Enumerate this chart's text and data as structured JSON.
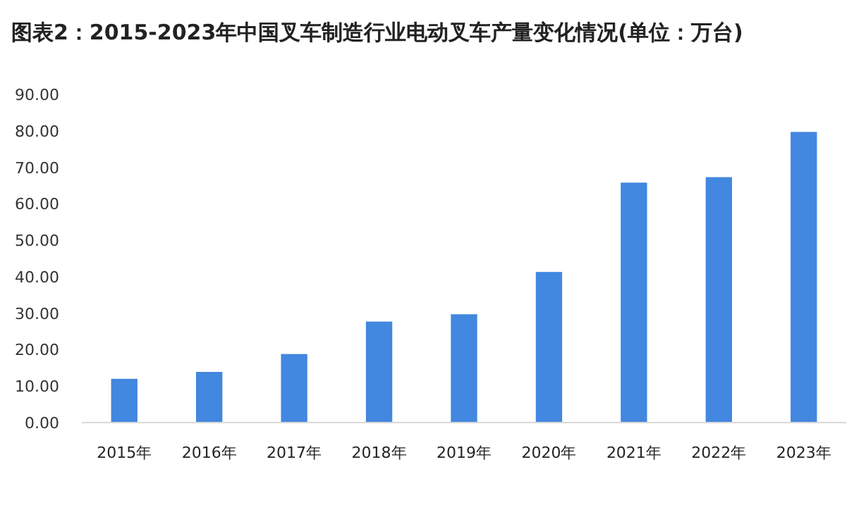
{
  "chart_data": {
    "type": "bar",
    "title": "图表2：2015-2023年中国叉车制造行业电动叉车产量变化情况(单位：万台)",
    "categories": [
      "2015年",
      "2016年",
      "2017年",
      "2018年",
      "2019年",
      "2020年",
      "2021年",
      "2022年",
      "2023年"
    ],
    "values": [
      12.0,
      13.9,
      18.8,
      27.7,
      29.7,
      41.3,
      65.8,
      67.3,
      79.7
    ],
    "color": "#4287e0",
    "ylim": [
      0,
      90
    ],
    "yticks": [
      {
        "value": 0,
        "label": "0.00"
      },
      {
        "value": 10,
        "label": "10.00"
      },
      {
        "value": 20,
        "label": "20.00"
      },
      {
        "value": 30,
        "label": "30.00"
      },
      {
        "value": 40,
        "label": "40.00"
      },
      {
        "value": 50,
        "label": "50.00"
      },
      {
        "value": 60,
        "label": "60.00"
      },
      {
        "value": 70,
        "label": "70.00"
      },
      {
        "value": 80,
        "label": "80.00"
      },
      {
        "value": 90,
        "label": "90.00"
      }
    ],
    "grid": false
  }
}
